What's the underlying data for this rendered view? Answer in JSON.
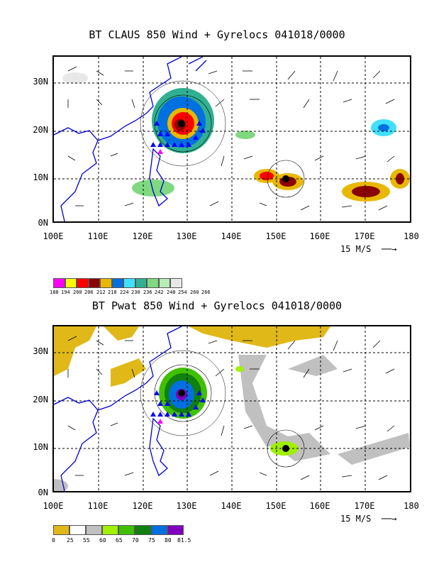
{
  "panels": [
    {
      "title": "BT CLAUS 850 Wind + Gyrelocs 041018/0000",
      "field": "CLAUS brightness temperature",
      "colorbar": {
        "labels": [
          "188",
          "194",
          "200",
          "206",
          "212",
          "218",
          "224",
          "230",
          "236",
          "242",
          "248",
          "254",
          "260",
          "266"
        ],
        "colors": [
          "#ff00ff",
          "#ffff00",
          "#ff0000",
          "#8b0000",
          "#e8b800",
          "#0070e0",
          "#40e0ff",
          "#30b090",
          "#80d880",
          "#b8ecb8",
          "#e8e8e8"
        ]
      }
    },
    {
      "title": "BT Pwat 850 Wind + Gyrelocs 041018/0000",
      "field": "Precipitable water",
      "colorbar": {
        "labels": [
          "0",
          "25",
          "55",
          "60",
          "65",
          "70",
          "75",
          "80",
          "81.5"
        ],
        "colors": [
          "#e0b818",
          "#ffffff",
          "#c0c0c0",
          "#a0f000",
          "#40c000",
          "#108010",
          "#0070e0",
          "#8000c0"
        ]
      }
    }
  ],
  "lat_labels": [
    "30N",
    "20N",
    "10N",
    "0N"
  ],
  "lon_labels": [
    "100E",
    "110E",
    "120E",
    "130E",
    "140E",
    "150E",
    "160E",
    "170E",
    "180"
  ],
  "reference_vector": "15 M/S",
  "storms": [
    {
      "lon": 128,
      "lat": 21.5
    },
    {
      "lon": 152,
      "lat": 10.5
    }
  ],
  "colors": {
    "coast": "#0000d0",
    "track_triangles": "#0000ff",
    "track_magenta": "#ff00ff"
  }
}
